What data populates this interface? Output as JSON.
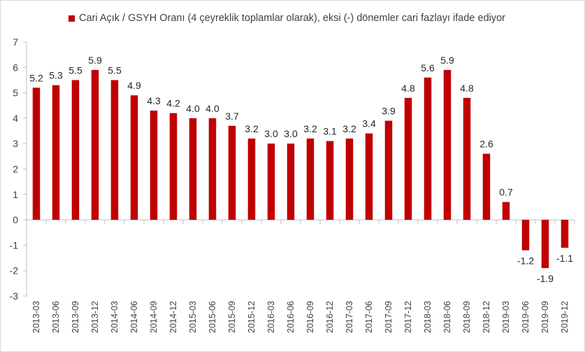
{
  "chart_data": {
    "type": "bar",
    "legend": "Cari Açık / GSYH Oranı (4 çeyreklik toplamlar olarak), eksi (-) dönemler cari fazlayı ifade ediyor",
    "legend_position": "top",
    "categories": [
      "2013-03",
      "2013-06",
      "2013-09",
      "2013-12",
      "2014-03",
      "2014-06",
      "2014-09",
      "2014-12",
      "2015-03",
      "2015-06",
      "2015-09",
      "2015-12",
      "2016-03",
      "2016-06",
      "2016-09",
      "2016-12",
      "2017-03",
      "2017-06",
      "2017-09",
      "2017-12",
      "2018-03",
      "2018-06",
      "2018-09",
      "2018-12",
      "2019-03",
      "2019-06",
      "2019-09",
      "2019-12"
    ],
    "values": [
      5.2,
      5.3,
      5.5,
      5.9,
      5.5,
      4.9,
      4.3,
      4.2,
      4.0,
      4.0,
      3.7,
      3.2,
      3.0,
      3.0,
      3.2,
      3.1,
      3.2,
      3.4,
      3.9,
      4.8,
      5.6,
      5.9,
      4.8,
      2.6,
      0.7,
      -1.2,
      -1.9,
      -1.1
    ],
    "value_labels": [
      "5.2",
      "5.3",
      "5.5",
      "5.9",
      "5.5",
      "4.9",
      "4.3",
      "4.2",
      "4.0",
      "4.0",
      "3.7",
      "3.2",
      "3.0",
      "3.0",
      "3.2",
      "3.1",
      "3.2",
      "3.4",
      "3.9",
      "4.8",
      "5.6",
      "5.9",
      "4.8",
      "2.6",
      "0.7",
      "-1.2",
      "-1.9",
      "-1.1"
    ],
    "yticks": [
      "7",
      "6",
      "5",
      "4",
      "3",
      "2",
      "1",
      "0",
      "-1",
      "-2",
      "-3"
    ],
    "ylim": [
      -3,
      7
    ],
    "grid": false,
    "bar_color": "#c00000",
    "xlabel": "",
    "ylabel": "",
    "title": ""
  }
}
